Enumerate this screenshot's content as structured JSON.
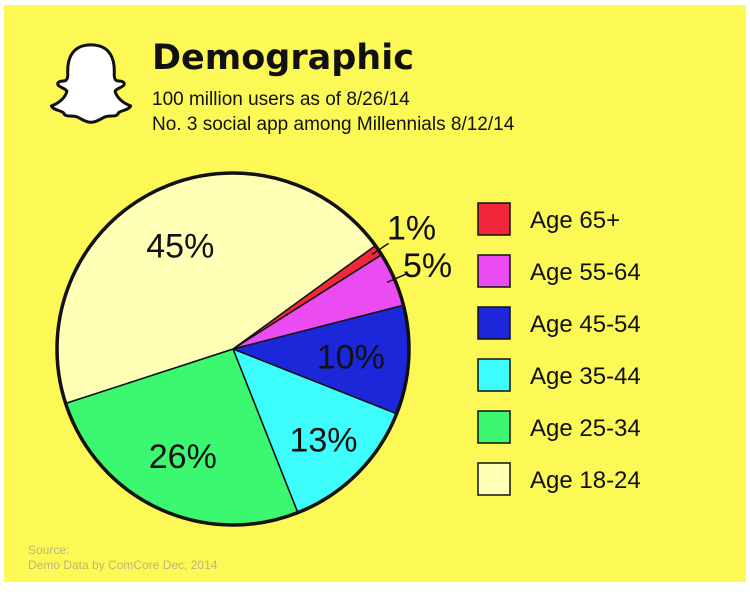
{
  "header": {
    "title": "Demographic",
    "subtitle_1": "100 million users as of 8/26/14",
    "subtitle_2": "No. 3 social app among Millennials 8/12/14",
    "logo_icon": "ghost-icon"
  },
  "colors": {
    "background": "#fcf957",
    "age_65_plus": "#f2273b",
    "age_55_64": "#ea4cf2",
    "age_45_54": "#1c27d9",
    "age_35_44": "#3cfcfc",
    "age_25_34": "#3cf870",
    "age_18_24": "#ffffb5"
  },
  "chart_data": {
    "type": "pie",
    "title": "Demographic",
    "categories": [
      "Age 65+",
      "Age 55-64",
      "Age 45-54",
      "Age 35-44",
      "Age 25-34",
      "Age 18-24"
    ],
    "values": [
      1,
      5,
      10,
      13,
      26,
      45
    ],
    "value_labels": [
      "1%",
      "5%",
      "10%",
      "13%",
      "26%",
      "45%"
    ],
    "colors": [
      "#f2273b",
      "#ea4cf2",
      "#1c27d9",
      "#3cfcfc",
      "#3cf870",
      "#ffffb5"
    ],
    "legend_position": "right"
  },
  "source": {
    "line_1": "Source:",
    "line_2": "Demo Data by ComCore Dec, 2014"
  }
}
